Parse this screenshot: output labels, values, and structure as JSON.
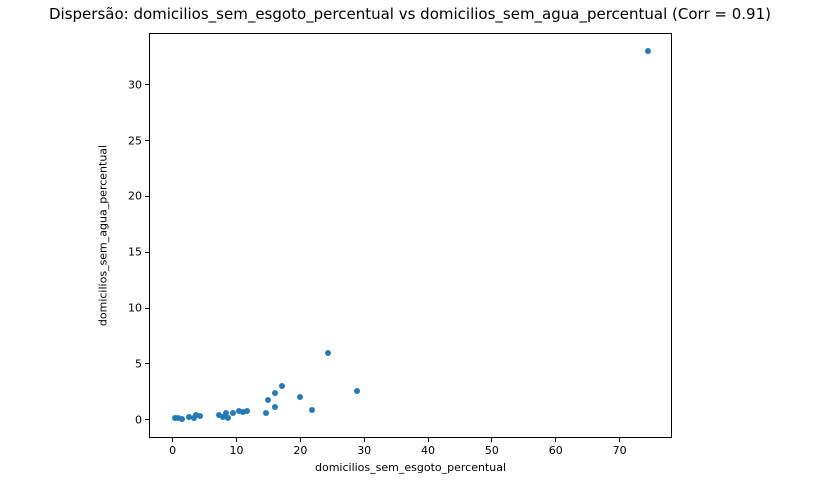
{
  "chart_data": {
    "type": "scatter",
    "title": "Dispersão: domicilios_sem_esgoto_percentual vs domicilios_sem_agua_percentual (Corr = 0.91)",
    "xlabel": "domicilios_sem_esgoto_percentual",
    "ylabel": "domicilios_sem_agua_percentual",
    "correlation": "0.91",
    "xlim": [
      -3.7,
      78.2
    ],
    "ylim": [
      -1.65,
      34.65
    ],
    "x_ticks": [
      0,
      10,
      20,
      30,
      40,
      50,
      60,
      70
    ],
    "y_ticks": [
      0,
      5,
      10,
      15,
      20,
      25,
      30
    ],
    "grid": false,
    "legend_position": "none",
    "point_color": "#1f77b4",
    "points": [
      [
        0.3,
        0.15
      ],
      [
        0.8,
        0.1
      ],
      [
        1.5,
        0.05
      ],
      [
        2.5,
        0.25
      ],
      [
        3.3,
        0.1
      ],
      [
        3.6,
        0.45
      ],
      [
        4.3,
        0.3
      ],
      [
        7.3,
        0.4
      ],
      [
        7.9,
        0.2
      ],
      [
        8.4,
        0.6
      ],
      [
        8.7,
        0.1
      ],
      [
        9.5,
        0.55
      ],
      [
        10.4,
        0.75
      ],
      [
        11.0,
        0.7
      ],
      [
        11.6,
        0.8
      ],
      [
        14.7,
        0.6
      ],
      [
        14.9,
        1.8
      ],
      [
        16.0,
        2.4
      ],
      [
        16.1,
        1.1
      ],
      [
        17.1,
        3.0
      ],
      [
        20.0,
        2.0
      ],
      [
        21.9,
        0.85
      ],
      [
        24.3,
        6.0
      ],
      [
        28.9,
        2.6
      ],
      [
        74.4,
        33.0
      ]
    ]
  }
}
